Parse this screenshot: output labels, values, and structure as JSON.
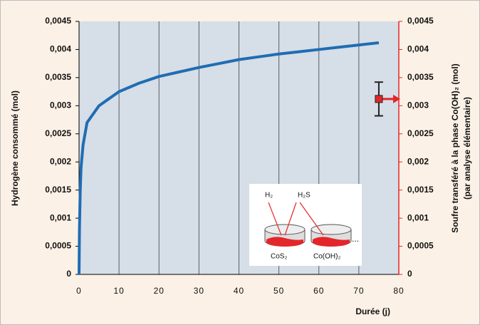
{
  "chart_data": {
    "type": "line",
    "x_label": "Durée (j)",
    "y_label": "Hydrogène consommé (mol)",
    "y2_label": [
      "Soufre transféré à la phase Co(OH)₂ (mol)",
      "(par analyse élémentaire)"
    ],
    "xlim": [
      0,
      80
    ],
    "xticks": [
      0,
      10,
      20,
      30,
      40,
      50,
      60,
      70,
      80
    ],
    "ylim": [
      0,
      0.0045
    ],
    "yticks": [
      {
        "value": 0,
        "label": "0"
      },
      {
        "value": 0.0005,
        "label": "0,0005"
      },
      {
        "value": 0.001,
        "label": "0,001"
      },
      {
        "value": 0.0015,
        "label": "0,0015"
      },
      {
        "value": 0.002,
        "label": "0,002"
      },
      {
        "value": 0.0025,
        "label": "0,0025"
      },
      {
        "value": 0.003,
        "label": "0,003"
      },
      {
        "value": 0.0035,
        "label": "0,0035"
      },
      {
        "value": 0.004,
        "label": "0,004"
      },
      {
        "value": 0.0045,
        "label": "0,0045"
      }
    ],
    "y2lim": [
      0,
      0.0045
    ],
    "y2ticks": [
      {
        "value": 0,
        "label": "0"
      },
      {
        "value": 0.0005,
        "label": "0,0005"
      },
      {
        "value": 0.001,
        "label": "0,001"
      },
      {
        "value": 0.0015,
        "label": "0,0015"
      },
      {
        "value": 0.002,
        "label": "0,002"
      },
      {
        "value": 0.0025,
        "label": "0,0025"
      },
      {
        "value": 0.003,
        "label": "0,003"
      },
      {
        "value": 0.0035,
        "label": "0,0035"
      },
      {
        "value": 0.004,
        "label": "0,004"
      },
      {
        "value": 0.0045,
        "label": "0,0045"
      }
    ],
    "grid": true,
    "series": [
      {
        "type": "line",
        "color": "#1f6db3",
        "x": [
          0,
          0.1,
          0.3,
          0.5,
          1,
          2,
          3,
          5,
          7,
          10,
          15,
          20,
          25,
          30,
          35,
          40,
          45,
          50,
          55,
          60,
          65,
          70,
          75
        ],
        "values": [
          0,
          0.0008,
          0.0015,
          0.0019,
          0.0023,
          0.0027,
          0.0028,
          0.003,
          0.0031,
          0.00325,
          0.0034,
          0.00352,
          0.0036,
          0.00368,
          0.00375,
          0.00382,
          0.00387,
          0.00392,
          0.00396,
          0.004,
          0.00404,
          0.00408,
          0.00412
        ]
      },
      {
        "type": "errorbar",
        "axis": "y2",
        "color": "#e3262a",
        "x": [
          75
        ],
        "values": [
          0.00312
        ],
        "errors": [
          0.0003
        ]
      }
    ],
    "inset": {
      "labels": [
        "H₂",
        "H₂S",
        "CoS₂",
        "Co(OH)₂",
        "..."
      ]
    }
  }
}
